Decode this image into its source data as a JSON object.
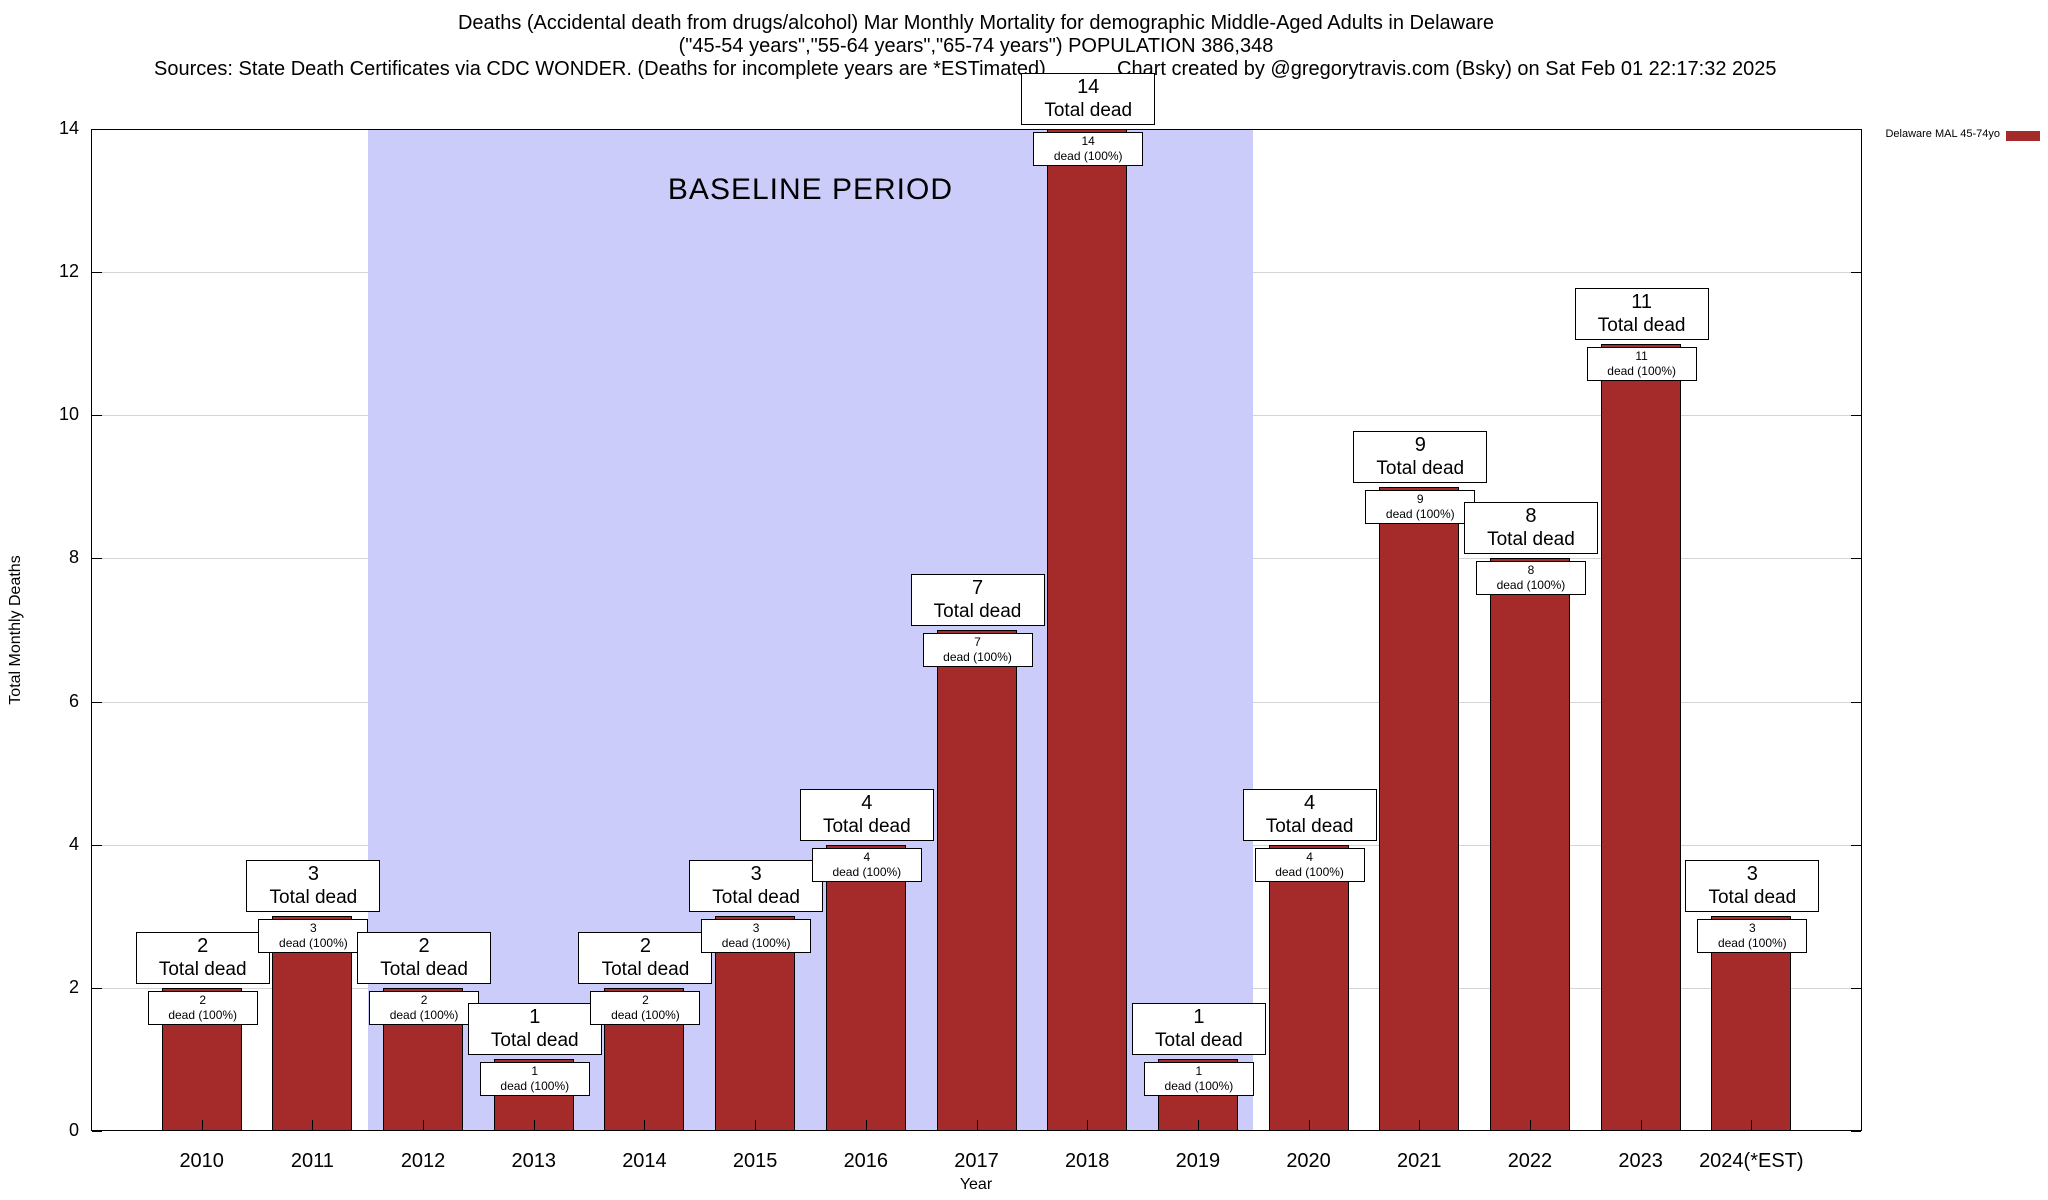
{
  "title": {
    "line1": "Deaths (Accidental death from drugs/alcohol) Mar Monthly Mortality for demographic Middle-Aged Adults in Delaware",
    "line2": "(\"45-54 years\",\"55-64 years\",\"65-74 years\") POPULATION 386,348",
    "line3_left": "Sources: State Death Certificates via CDC WONDER. (Deaths for incomplete years are *ESTimated)",
    "line3_right": "Chart created by @gregorytravis.com (Bsky) on Sat Feb 01 22:17:32 2025"
  },
  "legend": {
    "label": "Delaware MAL 45-74yo",
    "color": "#a52a2a"
  },
  "axes": {
    "y_label": "Total Monthly Deaths",
    "x_label": "Year",
    "y_ticks": [
      0,
      2,
      4,
      6,
      8,
      10,
      12,
      14
    ]
  },
  "baseline": {
    "label": "BASELINE PERIOD",
    "start_index": 2,
    "end_index": 9,
    "color": "#ccccfa"
  },
  "chart_data": {
    "type": "bar",
    "title": "Deaths (Accidental death from drugs/alcohol) Mar Monthly Mortality for demographic Middle-Aged Adults in Delaware",
    "categories": [
      "2010",
      "2011",
      "2012",
      "2013",
      "2014",
      "2015",
      "2016",
      "2017",
      "2018",
      "2019",
      "2020",
      "2021",
      "2022",
      "2023",
      "2024(*EST)"
    ],
    "values": [
      2,
      3,
      2,
      1,
      2,
      3,
      4,
      7,
      14,
      1,
      4,
      9,
      8,
      11,
      3
    ],
    "series_label": "Delaware MAL 45-74yo",
    "bar_color": "#a52a2a",
    "xlabel": "Year",
    "ylabel": "Total Monthly Deaths",
    "ylim": [
      0,
      14
    ],
    "grid": true,
    "legend_position": "top-right",
    "annotations": {
      "total_label_suffix": "Total dead",
      "inner_suffix": "dead (100%)"
    }
  }
}
